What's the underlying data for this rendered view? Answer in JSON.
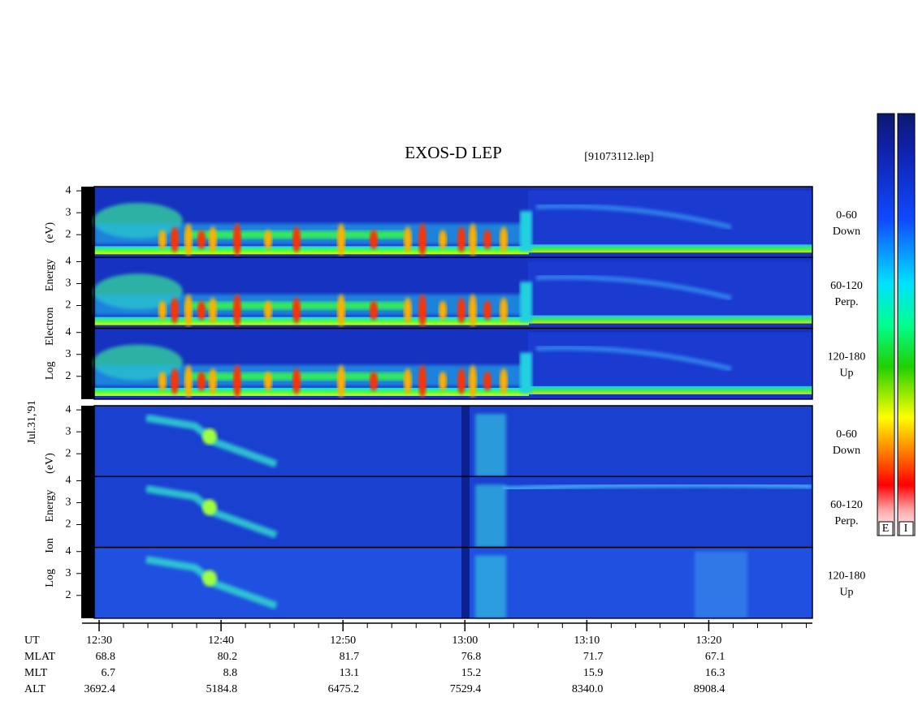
{
  "chart_data": {
    "type": "spectrogram",
    "title": "EXOS-D LEP",
    "file": "[91073112.lep]",
    "date": "Jul.31,'91",
    "xlabel": "UT",
    "xlim": [
      748.6,
      808.5
    ],
    "xticks": [
      {
        "value": 750,
        "label": "12:30"
      },
      {
        "value": 760,
        "label": "12:40"
      },
      {
        "value": 770,
        "label": "12:50"
      },
      {
        "value": 780,
        "label": "13:00"
      },
      {
        "value": 790,
        "label": "13:10"
      },
      {
        "value": 800,
        "label": "13:20"
      }
    ],
    "ylim": [
      0.96,
      4.19
    ],
    "yticks": [
      2,
      3,
      4
    ],
    "groups": [
      {
        "kind": "electron",
        "ylabel": "Log Electron Energy (eV)",
        "panels": [
          {
            "label": [
              "0-60",
              "Down"
            ]
          },
          {
            "label": [
              "60-120",
              "Perp."
            ]
          },
          {
            "label": [
              "120-180",
              "Up"
            ]
          }
        ]
      },
      {
        "kind": "ion",
        "ylabel": "Log Ion Energy (eV)",
        "panels": [
          {
            "label": [
              "0-60",
              "Down"
            ]
          },
          {
            "label": [
              "60-120",
              "Perp."
            ]
          },
          {
            "label": [
              "120-180",
              "Up"
            ]
          }
        ]
      }
    ],
    "rows": [
      {
        "label": "MLAT",
        "values": [
          "68.8",
          "80.2",
          "81.7",
          "76.8",
          "71.7",
          "67.1"
        ]
      },
      {
        "label": "MLT",
        "values": [
          "6.7",
          "8.8",
          "13.1",
          "15.2",
          "15.9",
          "16.3"
        ]
      },
      {
        "label": "ALT",
        "values": [
          "3692.4",
          "5184.8",
          "6475.2",
          "7529.4",
          "8340.0",
          "8908.4"
        ]
      }
    ],
    "colorbar": {
      "labels": [
        "E",
        "I"
      ]
    }
  }
}
